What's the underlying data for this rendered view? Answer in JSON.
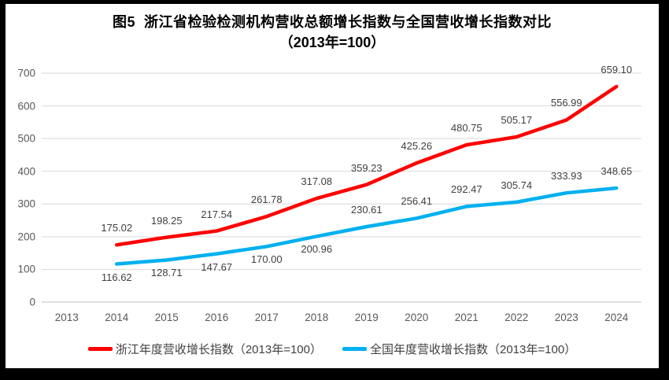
{
  "figure": {
    "title_line1": "图5  浙江省检验检测机构营收总额增长指数与全国营收增长指数对比",
    "title_line2": "（2013年=100）"
  },
  "chart_data": {
    "type": "line",
    "x": [
      2013,
      2014,
      2015,
      2016,
      2017,
      2018,
      2019,
      2020,
      2021,
      2022,
      2023,
      2024
    ],
    "series": [
      {
        "name": "浙江年度营收增长指数（2013年=100）",
        "color": "#FF0000",
        "start_index": 1,
        "values": [
          175.02,
          198.25,
          217.54,
          261.78,
          317.08,
          359.23,
          425.26,
          480.75,
          505.17,
          556.99,
          659.1
        ],
        "label_position": "above"
      },
      {
        "name": "全国年度营收增长指数（2013年=100）",
        "color": "#00B0F0",
        "start_index": 1,
        "values": [
          116.62,
          128.71,
          147.67,
          170.0,
          200.96,
          230.61,
          256.41,
          292.47,
          305.74,
          333.93,
          348.65
        ],
        "label_positions": [
          "below",
          "below",
          "below",
          "below",
          "below",
          "above",
          "above",
          "above",
          "above",
          "above",
          "above"
        ]
      }
    ],
    "ylim": [
      0,
      700
    ],
    "yticks": [
      0,
      100,
      200,
      300,
      400,
      500,
      600,
      700
    ],
    "grid": true,
    "legend_position": "bottom",
    "title": "图5  浙江省检验检测机构营收总额增长指数与全国营收增长指数对比（2013年=100）"
  },
  "legend": [
    {
      "label": "浙江年度营收增长指数（2013年=100）",
      "color": "#FF0000"
    },
    {
      "label": "全国年度营收增长指数（2013年=100）",
      "color": "#00B0F0"
    }
  ],
  "style": {
    "gridline_color": "#D9D9D9",
    "axis_line_color": "#BFBFBF",
    "tick_text_color": "#595959",
    "data_label_color": "#3f3f3f"
  }
}
